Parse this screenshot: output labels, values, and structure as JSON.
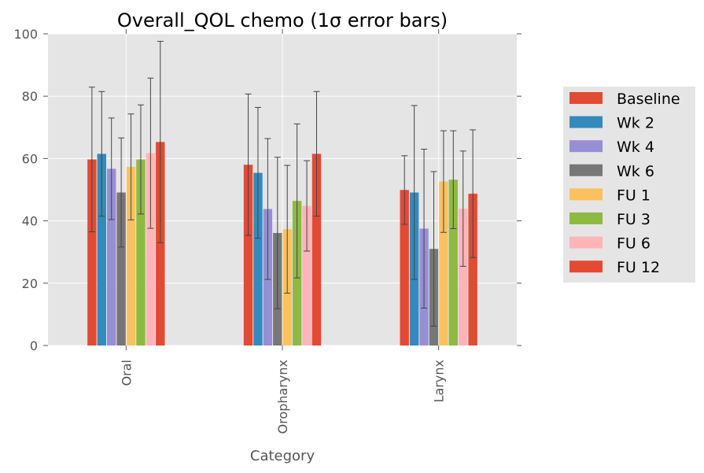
{
  "chart_data": {
    "type": "bar",
    "title": "Overall_QOL chemo (1σ error bars)",
    "xlabel": "Category",
    "ylabel": "",
    "ylim": [
      0,
      100
    ],
    "yticks": [
      0,
      20,
      40,
      60,
      80,
      100
    ],
    "grid": true,
    "legend_position": "right",
    "categories": [
      "Oral",
      "Oropharynx",
      "Larynx"
    ],
    "series": [
      {
        "name": "Baseline",
        "color": "#E24A33",
        "values": [
          59.7,
          58.0,
          49.9
        ],
        "errors": [
          23.2,
          22.7,
          11.0
        ]
      },
      {
        "name": "Wk 2",
        "color": "#348ABD",
        "values": [
          61.5,
          55.4,
          49.1
        ],
        "errors": [
          20.0,
          21.0,
          27.9
        ]
      },
      {
        "name": "Wk 4",
        "color": "#988ED5",
        "values": [
          56.7,
          43.8,
          37.5
        ],
        "errors": [
          16.3,
          22.6,
          25.5
        ]
      },
      {
        "name": "Wk 6",
        "color": "#777777",
        "values": [
          49.1,
          36.1,
          31.0
        ],
        "errors": [
          17.5,
          24.3,
          24.8
        ]
      },
      {
        "name": "FU 1",
        "color": "#FBC15E",
        "values": [
          57.3,
          37.3,
          52.6
        ],
        "errors": [
          17.0,
          20.5,
          16.3
        ]
      },
      {
        "name": "FU 3",
        "color": "#8EBA42",
        "values": [
          59.7,
          46.4,
          53.2
        ],
        "errors": [
          17.5,
          24.7,
          15.7
        ]
      },
      {
        "name": "FU 6",
        "color": "#FFB5B8",
        "values": [
          61.7,
          44.8,
          43.9
        ],
        "errors": [
          24.1,
          14.5,
          18.5
        ]
      },
      {
        "name": "FU 12",
        "color": "#E24A33",
        "values": [
          65.3,
          61.5,
          48.7
        ],
        "errors": [
          32.3,
          20.0,
          20.5
        ]
      }
    ]
  }
}
